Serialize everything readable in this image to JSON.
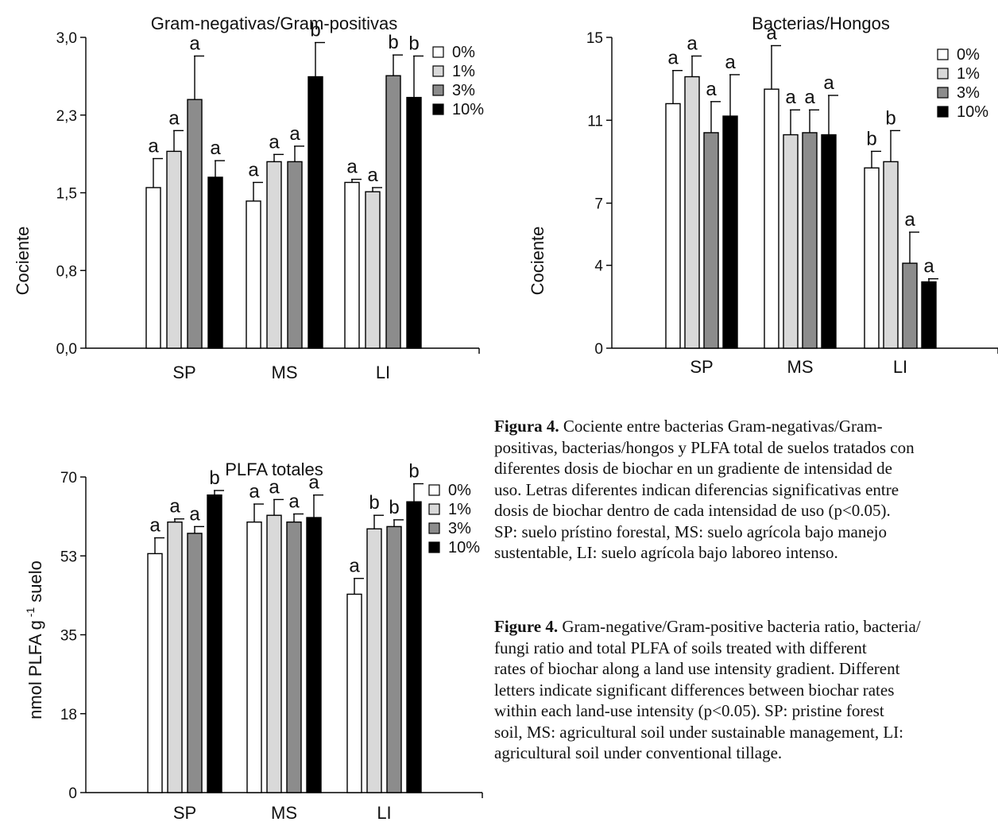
{
  "colors": {
    "0%": "#ffffff",
    "1%": "#d9d9d9",
    "3%": "#8c8c8c",
    "10%": "#000000",
    "stroke": "#000000"
  },
  "legend": [
    "0%",
    "1%",
    "3%",
    "10%"
  ],
  "chart_data": [
    {
      "type": "bar",
      "title": "Gram-negativas/Gram-positivas",
      "ylabel": "Cociente",
      "xlabel": "",
      "categories": [
        "SP",
        "MS",
        "LI"
      ],
      "ylim": [
        0,
        3.0
      ],
      "yticks": [
        0.0,
        0.75,
        1.5,
        2.25,
        3.0
      ],
      "ytick_labels": [
        "0,0",
        "0,8",
        "1,5",
        "2,3",
        "3,0"
      ],
      "legend_position": "top-right",
      "series": [
        {
          "name": "0%",
          "values": [
            1.55,
            1.42,
            1.6
          ],
          "errors": [
            0.28,
            0.18,
            0.03
          ],
          "letters": [
            "a",
            "a",
            "a"
          ]
        },
        {
          "name": "1%",
          "values": [
            1.9,
            1.8,
            1.51
          ],
          "errors": [
            0.2,
            0.07,
            0.04
          ],
          "letters": [
            "a",
            "a",
            "a"
          ]
        },
        {
          "name": "3%",
          "values": [
            2.4,
            1.8,
            2.63
          ],
          "errors": [
            0.42,
            0.15,
            0.2
          ],
          "letters": [
            "a",
            "a",
            "b"
          ]
        },
        {
          "name": "10%",
          "values": [
            1.65,
            2.62,
            2.42
          ],
          "errors": [
            0.16,
            0.33,
            0.4
          ],
          "letters": [
            "a",
            "b",
            "b"
          ]
        }
      ]
    },
    {
      "type": "bar",
      "title": "Bacterias/Hongos",
      "ylabel": "Cociente",
      "xlabel": "",
      "categories": [
        "SP",
        "MS",
        "LI"
      ],
      "ylim": [
        0,
        15
      ],
      "yticks": [
        0,
        4,
        7,
        11,
        15
      ],
      "ytick_labels": [
        "0",
        "4",
        "7",
        "11",
        "15"
      ],
      "legend_position": "top-right",
      "series": [
        {
          "name": "0%",
          "values": [
            11.8,
            12.5,
            8.7
          ],
          "errors": [
            1.6,
            2.1,
            0.8
          ],
          "letters": [
            "a",
            "a",
            "b"
          ]
        },
        {
          "name": "1%",
          "values": [
            13.1,
            10.3,
            9.0
          ],
          "errors": [
            1.0,
            1.2,
            1.5
          ],
          "letters": [
            "a",
            "a",
            "b"
          ]
        },
        {
          "name": "3%",
          "values": [
            10.4,
            10.4,
            4.1
          ],
          "errors": [
            1.5,
            1.1,
            1.5
          ],
          "letters": [
            "a",
            "a",
            "a"
          ]
        },
        {
          "name": "10%",
          "values": [
            11.2,
            10.3,
            3.2
          ],
          "errors": [
            2.0,
            1.9,
            0.15
          ],
          "letters": [
            "a",
            "a",
            "a"
          ]
        }
      ]
    },
    {
      "type": "bar",
      "title": "PLFA totales",
      "ylabel": "nmol PLFA g⁻¹ suelo",
      "xlabel": "",
      "categories": [
        "SP",
        "MS",
        "LI"
      ],
      "ylim": [
        0,
        70
      ],
      "yticks": [
        0,
        17.5,
        35,
        52.5,
        70
      ],
      "ytick_labels": [
        "0",
        "18",
        "35",
        "53",
        "70"
      ],
      "legend_position": "top-right",
      "series": [
        {
          "name": "0%",
          "values": [
            53,
            60,
            44
          ],
          "errors": [
            3.5,
            4.0,
            3.5
          ],
          "letters": [
            "a",
            "a",
            "a"
          ]
        },
        {
          "name": "1%",
          "values": [
            60,
            61.5,
            58.5
          ],
          "errors": [
            0.7,
            3.5,
            3.0
          ],
          "letters": [
            "a",
            "a",
            "b"
          ]
        },
        {
          "name": "3%",
          "values": [
            57.5,
            60,
            59
          ],
          "errors": [
            1.5,
            1.8,
            1.5
          ],
          "letters": [
            "a",
            "a",
            "b"
          ]
        },
        {
          "name": "10%",
          "values": [
            66,
            61,
            64.5
          ],
          "errors": [
            1.0,
            5.0,
            4.0
          ],
          "letters": [
            "b",
            "a",
            "b"
          ]
        }
      ]
    }
  ],
  "caption_es": {
    "label": "Figura 4.",
    "text": " Cociente entre bacterias Gram-negativas/Gram-\npositivas, bacterias/hongos y PLFA total de suelos tratados con\ndiferentes dosis de biochar en un gradiente de intensidad de\nuso. Letras diferentes indican diferencias significativas entre\ndosis de biochar dentro de cada intensidad de uso (p<0.05).\nSP: suelo prístino forestal, MS: suelo agrícola bajo manejo\nsustentable, LI: suelo agrícola bajo laboreo intenso."
  },
  "caption_en": {
    "label": "Figure 4.",
    "text": " Gram-negative/Gram-positive bacteria ratio, bacteria/\nfungi ratio and total PLFA of soils treated with different\nrates of biochar along a land use intensity gradient. Different\nletters indicate significant differences between biochar rates\nwithin each land-use intensity (p<0.05). SP: pristine forest\nsoil, MS: agricultural soil under sustainable management, LI:\nagricultural soil under conventional tillage."
  }
}
